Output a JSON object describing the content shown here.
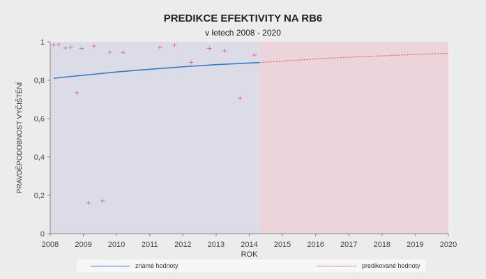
{
  "chart_data": {
    "type": "line",
    "title": "PREDIKCE EFEKTIVITY NA RB6",
    "subtitle": "v letech 2008 - 2020",
    "xlabel": "ROK",
    "ylabel": "PRAVDĚPODOBNOST VYČIŠTĚNÍ",
    "xlim": [
      2008,
      2020
    ],
    "ylim": [
      0,
      1
    ],
    "x_ticks": [
      "2008",
      "2009",
      "2010",
      "2011",
      "2012",
      "2013",
      "2014",
      "2015",
      "2016",
      "2017",
      "2018",
      "2019",
      "2020"
    ],
    "y_ticks": [
      "0",
      "0,2",
      "0,4",
      "0,6",
      "0,8",
      "1"
    ],
    "known_region": [
      2008,
      2014.3
    ],
    "predicted_region": [
      2014.3,
      2020
    ],
    "region_colors": {
      "known": "#dcdce9",
      "predicted": "#ecd5da"
    },
    "series": [
      {
        "name": "známé hodnoty",
        "style": "solid",
        "color": "#3a78c4",
        "x": [
          2008.1,
          2009,
          2010,
          2011,
          2012,
          2013,
          2014.3
        ],
        "y": [
          0.81,
          0.826,
          0.843,
          0.857,
          0.87,
          0.881,
          0.892
        ]
      },
      {
        "name": "predikované hodnoty",
        "style": "dotted",
        "color": "#e06060",
        "x": [
          2014.3,
          2015,
          2016,
          2017,
          2018,
          2019,
          2020
        ],
        "y": [
          0.892,
          0.9,
          0.911,
          0.92,
          0.927,
          0.934,
          0.94
        ]
      }
    ],
    "scatter": {
      "marker": "+",
      "color": "#d86a78",
      "x": [
        2008.1,
        2008.25,
        2008.45,
        2008.62,
        2008.8,
        2008.95,
        2009.15,
        2009.32,
        2009.58,
        2009.8,
        2010.2,
        2011.3,
        2011.75,
        2012.25,
        2012.8,
        2013.25,
        2013.72,
        2014.15
      ],
      "y": [
        0.985,
        0.988,
        0.97,
        0.975,
        0.737,
        0.967,
        0.162,
        0.98,
        0.172,
        0.948,
        0.945,
        0.972,
        0.985,
        0.895,
        0.967,
        0.955,
        0.708,
        0.932
      ]
    },
    "grid": false,
    "legend_position": "bottom"
  },
  "legend": {
    "known_label": "známé hodnoty",
    "predicted_label": "predikované hodnoty"
  }
}
